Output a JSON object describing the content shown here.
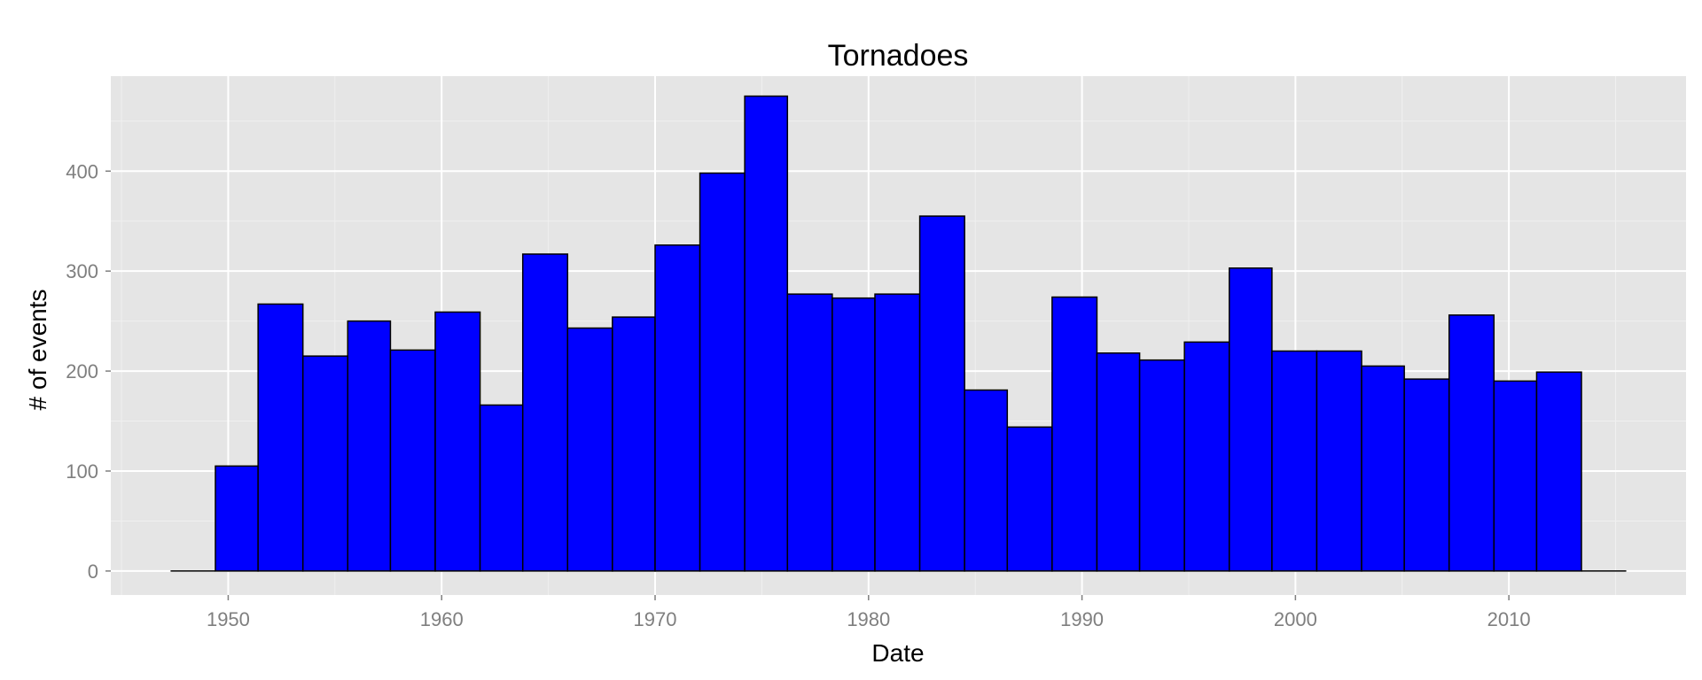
{
  "chart_data": {
    "type": "bar",
    "subtype": "histogram",
    "title": "Tornadoes",
    "xlabel": "Date",
    "ylabel": "# of events",
    "x_ticks": [
      1950,
      1960,
      1970,
      1980,
      1990,
      2000,
      2010
    ],
    "y_ticks": [
      0,
      100,
      200,
      300,
      400
    ],
    "xlim": [
      1944.5,
      2018.3
    ],
    "ylim": [
      -24,
      495
    ],
    "bin_width": 2.06,
    "bins": [
      {
        "start": 1947.3,
        "end": 1949.4,
        "value": 0
      },
      {
        "start": 1949.4,
        "end": 1951.4,
        "value": 105
      },
      {
        "start": 1951.4,
        "end": 1953.5,
        "value": 267
      },
      {
        "start": 1953.5,
        "end": 1955.6,
        "value": 215
      },
      {
        "start": 1955.6,
        "end": 1957.6,
        "value": 250
      },
      {
        "start": 1957.6,
        "end": 1959.7,
        "value": 221
      },
      {
        "start": 1959.7,
        "end": 1961.8,
        "value": 259
      },
      {
        "start": 1961.8,
        "end": 1963.8,
        "value": 166
      },
      {
        "start": 1963.8,
        "end": 1965.9,
        "value": 317
      },
      {
        "start": 1965.9,
        "end": 1968.0,
        "value": 243
      },
      {
        "start": 1968.0,
        "end": 1970.0,
        "value": 254
      },
      {
        "start": 1970.0,
        "end": 1972.1,
        "value": 326
      },
      {
        "start": 1972.1,
        "end": 1974.2,
        "value": 398
      },
      {
        "start": 1974.2,
        "end": 1976.2,
        "value": 475
      },
      {
        "start": 1976.2,
        "end": 1978.3,
        "value": 277
      },
      {
        "start": 1978.3,
        "end": 1980.3,
        "value": 273
      },
      {
        "start": 1980.3,
        "end": 1982.4,
        "value": 277
      },
      {
        "start": 1982.4,
        "end": 1984.5,
        "value": 355
      },
      {
        "start": 1984.5,
        "end": 1986.5,
        "value": 181
      },
      {
        "start": 1986.5,
        "end": 1988.6,
        "value": 144
      },
      {
        "start": 1988.6,
        "end": 1990.7,
        "value": 274
      },
      {
        "start": 1990.7,
        "end": 1992.7,
        "value": 218
      },
      {
        "start": 1992.7,
        "end": 1994.8,
        "value": 211
      },
      {
        "start": 1994.8,
        "end": 1996.9,
        "value": 229
      },
      {
        "start": 1996.9,
        "end": 1998.9,
        "value": 303
      },
      {
        "start": 1998.9,
        "end": 2001.0,
        "value": 220
      },
      {
        "start": 2001.0,
        "end": 2003.1,
        "value": 220
      },
      {
        "start": 2003.1,
        "end": 2005.1,
        "value": 205
      },
      {
        "start": 2005.1,
        "end": 2007.2,
        "value": 192
      },
      {
        "start": 2007.2,
        "end": 2009.3,
        "value": 256
      },
      {
        "start": 2009.3,
        "end": 2011.3,
        "value": 190
      },
      {
        "start": 2011.3,
        "end": 2013.4,
        "value": 199
      },
      {
        "start": 2013.4,
        "end": 2015.5,
        "value": 0
      }
    ],
    "grid": true,
    "legend": "none"
  },
  "colors": {
    "bar_fill": "#0000ff",
    "bar_stroke": "#000000",
    "panel_bg": "#e5e5e5",
    "grid_major": "#ffffff",
    "grid_minor": "#f0f0f0",
    "tick_text": "#7f7f7f",
    "tick_mark": "#7f7f7f",
    "title_text": "#000000"
  }
}
